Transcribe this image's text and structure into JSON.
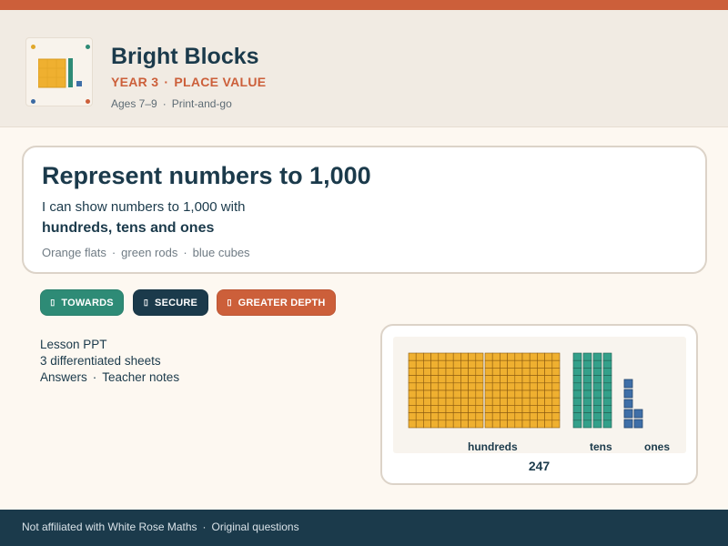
{
  "brand": {
    "title": "Bright Blocks",
    "year": "YEAR 3",
    "topic": "PLACE VALUE",
    "sep": "·",
    "ages": "Ages 7–9",
    "format": "Print-and-go"
  },
  "lesson": {
    "title": "Represent numbers to 1,000",
    "objective_line1": "I can show numbers to 1,000 with",
    "objective_line2": "hundreds, tens and ones",
    "legend": [
      "Orange flats",
      "green rods",
      "blue cubes"
    ]
  },
  "levels": [
    {
      "label": "TOWARDS",
      "icon": "box-glyph-icon",
      "color": "#2e8b76"
    },
    {
      "label": "SECURE",
      "icon": "box-glyph-icon",
      "color": "#1b3a4b"
    },
    {
      "label": "GREATER DEPTH",
      "icon": "box-glyph-icon",
      "color": "#cc5f3a"
    }
  ],
  "resources": {
    "line1": "Lesson PPT",
    "line2": "3 differentiated sheets",
    "answers": "Answers",
    "notes": "Teacher notes"
  },
  "example": {
    "hundreds": 2,
    "tens": 4,
    "ones": 7,
    "labels": {
      "hundreds": "hundreds",
      "tens": "tens",
      "ones": "ones"
    },
    "number": "247"
  },
  "footer": {
    "left": "Not affiliated with White Rose Maths",
    "right": "Original questions"
  },
  "colors": {
    "accent": "#cc5f3a",
    "navy": "#1b3a4b",
    "green": "#2e8b76",
    "orange_block": "#efb030",
    "green_block": "#34a08a",
    "blue_block": "#3f6fa8"
  }
}
